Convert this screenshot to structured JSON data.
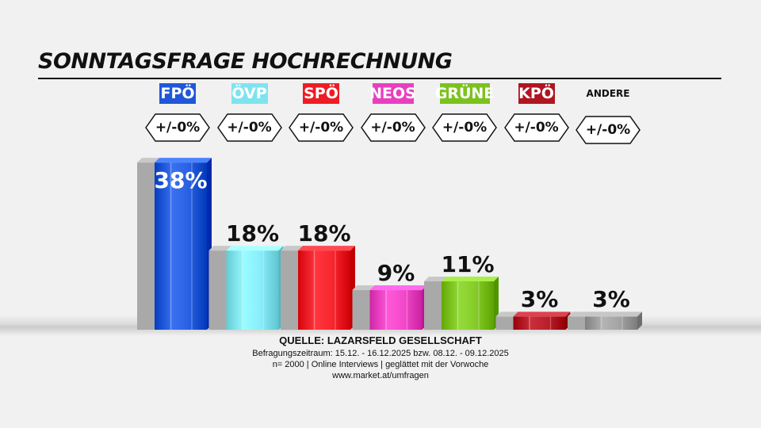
{
  "header": {
    "title": "SONNTAGSFRAGE HOCHRECHNUNG"
  },
  "chart_data": {
    "type": "bar",
    "categories": [
      "FPÖ",
      "ÖVP",
      "SPÖ",
      "NEOS",
      "GRÜNE",
      "KPÖ",
      "ANDERE"
    ],
    "values": [
      38,
      18,
      18,
      9,
      11,
      3,
      3
    ],
    "value_labels": [
      "38%",
      "18%",
      "18%",
      "9%",
      "11%",
      "3%",
      "3%"
    ],
    "changes": [
      "+/-0%",
      "+/-0%",
      "+/-0%",
      "+/-0%",
      "+/-0%",
      "+/-0%",
      "+/-0%"
    ],
    "colors": [
      "#1f57d8",
      "#7fe3ef",
      "#ee1c25",
      "#e83fc0",
      "#7cc21f",
      "#b01522",
      "#9a9a9a"
    ],
    "ylim": [
      0,
      40
    ],
    "title": "SONNTAGSFRAGE HOCHRECHNUNG"
  },
  "footer": {
    "source": "QUELLE: LAZARSFELD GESELLSCHAFT",
    "line1": "Befragungszeitraum:  15.12. - 16.12.2025  bzw. 08.12. - 09.12.2025",
    "line2": "n= 2000 | Online Interviews | geglättet mit der Vorwoche",
    "line3": "www.market.at/umfragen"
  }
}
